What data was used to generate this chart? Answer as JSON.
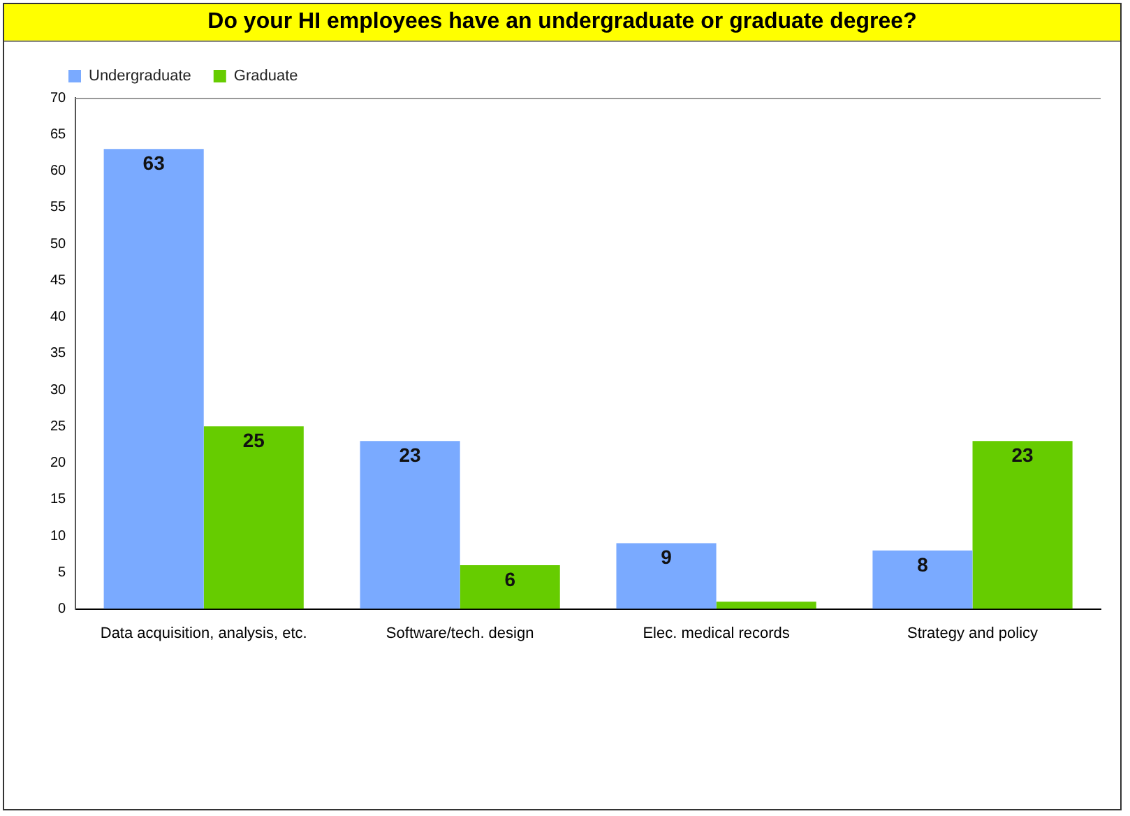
{
  "chart_data": {
    "type": "bar",
    "title": "Do your HI employees have an undergraduate or graduate degree?",
    "categories": [
      "Data acquisition, analysis, etc.",
      "Software/tech. design",
      "Elec. medical records",
      "Strategy and policy"
    ],
    "series": [
      {
        "name": "Undergraduate",
        "color": "#7aaaff",
        "values": [
          63,
          23,
          9,
          8
        ],
        "value_labels": [
          "63",
          "23",
          "9",
          "8"
        ]
      },
      {
        "name": "Graduate",
        "color": "#66cc00",
        "values": [
          25,
          6,
          1,
          23
        ],
        "value_labels": [
          "25",
          "6",
          null,
          "23"
        ]
      }
    ],
    "ylim": [
      0,
      70
    ],
    "yticks": [
      0,
      5,
      10,
      15,
      20,
      25,
      30,
      35,
      40,
      45,
      50,
      55,
      60,
      65,
      70
    ],
    "grid": false,
    "legend": "top left"
  }
}
